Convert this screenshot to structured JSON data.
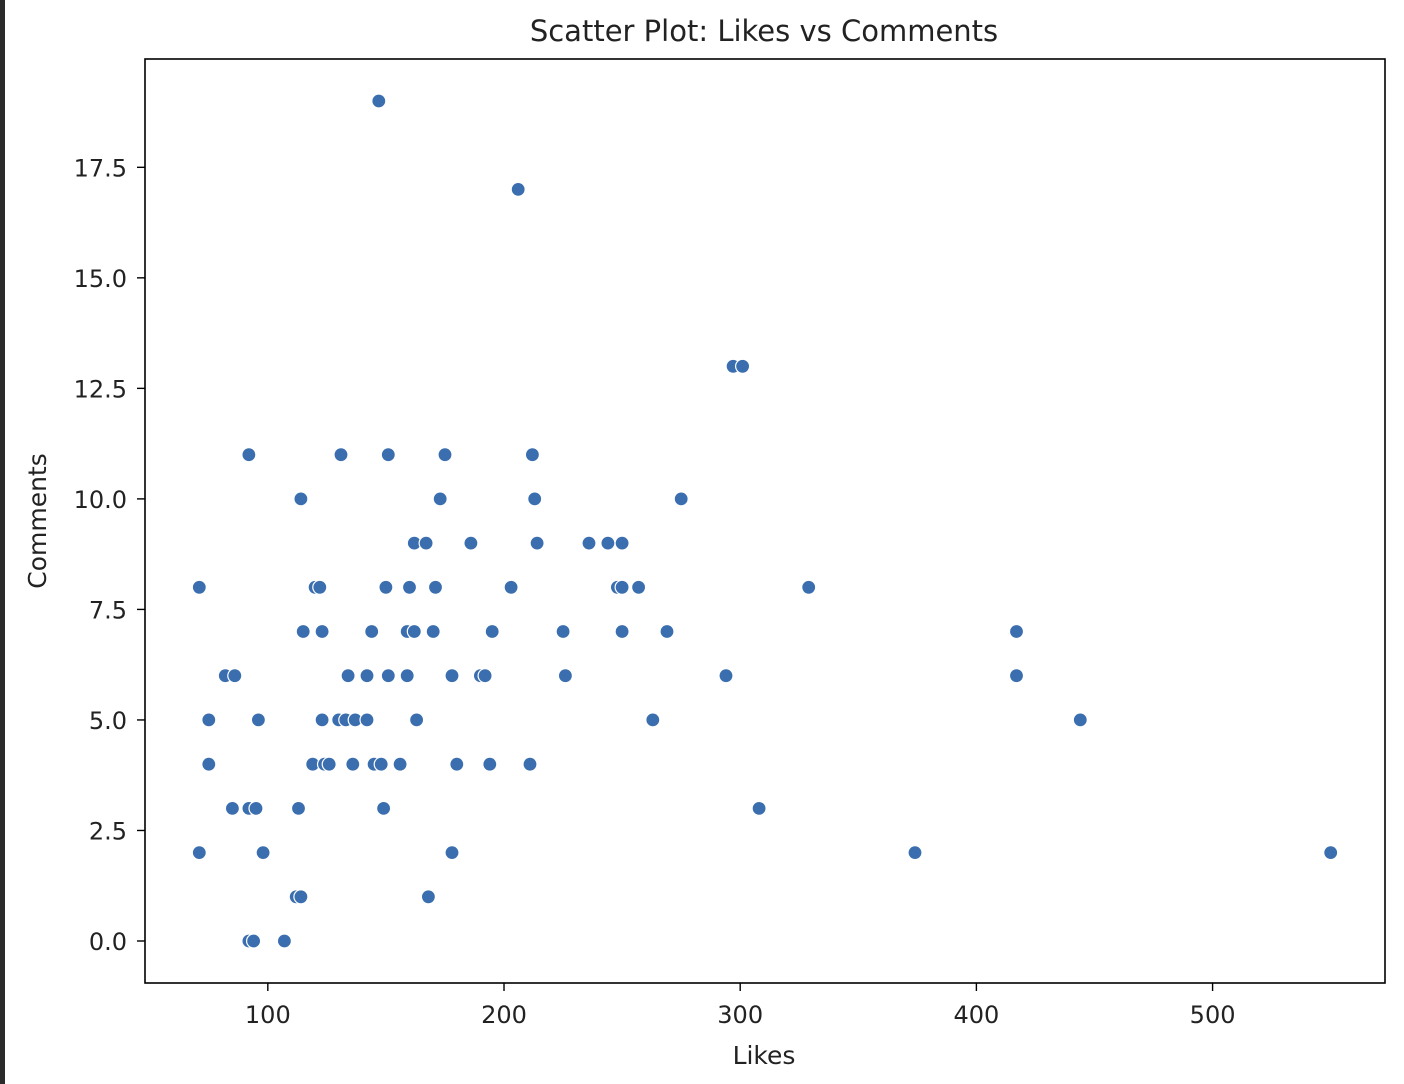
{
  "chart_data": {
    "type": "scatter",
    "title": "Scatter Plot: Likes vs Comments",
    "xlabel": "Likes",
    "ylabel": "Comments",
    "xlim": [
      48,
      573
    ],
    "ylim": [
      -0.95,
      19.95
    ],
    "xticks": [
      100,
      200,
      300,
      400,
      500
    ],
    "xtick_labels": [
      "100",
      "200",
      "300",
      "400",
      "500"
    ],
    "yticks": [
      0,
      2.5,
      5,
      7.5,
      10,
      12.5,
      15,
      17.5
    ],
    "ytick_labels": [
      "0.0",
      "2.5",
      "5.0",
      "7.5",
      "10.0",
      "12.5",
      "15.0",
      "17.5"
    ],
    "grid": false,
    "marker_color": "#3a6eaf",
    "marker_edge_color": "#ffffff",
    "points": [
      [
        147,
        19
      ],
      [
        206,
        17
      ],
      [
        297,
        13
      ],
      [
        301,
        13
      ],
      [
        92,
        11
      ],
      [
        131,
        11
      ],
      [
        151,
        11
      ],
      [
        175,
        11
      ],
      [
        212,
        11
      ],
      [
        114,
        10
      ],
      [
        173,
        10
      ],
      [
        213,
        10
      ],
      [
        275,
        10
      ],
      [
        162,
        9
      ],
      [
        167,
        9
      ],
      [
        186,
        9
      ],
      [
        214,
        9
      ],
      [
        236,
        9
      ],
      [
        244,
        9
      ],
      [
        250,
        9
      ],
      [
        71,
        8
      ],
      [
        120,
        8
      ],
      [
        122,
        8
      ],
      [
        150,
        8
      ],
      [
        160,
        8
      ],
      [
        171,
        8
      ],
      [
        203,
        8
      ],
      [
        248,
        8
      ],
      [
        250,
        8
      ],
      [
        257,
        8
      ],
      [
        329,
        8
      ],
      [
        115,
        7
      ],
      [
        123,
        7
      ],
      [
        144,
        7
      ],
      [
        159,
        7
      ],
      [
        162,
        7
      ],
      [
        170,
        7
      ],
      [
        195,
        7
      ],
      [
        225,
        7
      ],
      [
        250,
        7
      ],
      [
        269,
        7
      ],
      [
        417,
        7
      ],
      [
        82,
        6
      ],
      [
        86,
        6
      ],
      [
        134,
        6
      ],
      [
        142,
        6
      ],
      [
        151,
        6
      ],
      [
        159,
        6
      ],
      [
        178,
        6
      ],
      [
        190,
        6
      ],
      [
        192,
        6
      ],
      [
        226,
        6
      ],
      [
        294,
        6
      ],
      [
        417,
        6
      ],
      [
        75,
        5
      ],
      [
        96,
        5
      ],
      [
        123,
        5
      ],
      [
        130,
        5
      ],
      [
        133,
        5
      ],
      [
        137,
        5
      ],
      [
        142,
        5
      ],
      [
        163,
        5
      ],
      [
        263,
        5
      ],
      [
        444,
        5
      ],
      [
        75,
        4
      ],
      [
        119,
        4
      ],
      [
        124,
        4
      ],
      [
        126,
        4
      ],
      [
        136,
        4
      ],
      [
        145,
        4
      ],
      [
        148,
        4
      ],
      [
        156,
        4
      ],
      [
        180,
        4
      ],
      [
        194,
        4
      ],
      [
        211,
        4
      ],
      [
        85,
        3
      ],
      [
        92,
        3
      ],
      [
        95,
        3
      ],
      [
        113,
        3
      ],
      [
        149,
        3
      ],
      [
        308,
        3
      ],
      [
        71,
        2
      ],
      [
        98,
        2
      ],
      [
        178,
        2
      ],
      [
        374,
        2
      ],
      [
        550,
        2
      ],
      [
        112,
        1
      ],
      [
        114,
        1
      ],
      [
        168,
        1
      ],
      [
        92,
        0
      ],
      [
        94,
        0
      ],
      [
        107,
        0
      ]
    ]
  }
}
